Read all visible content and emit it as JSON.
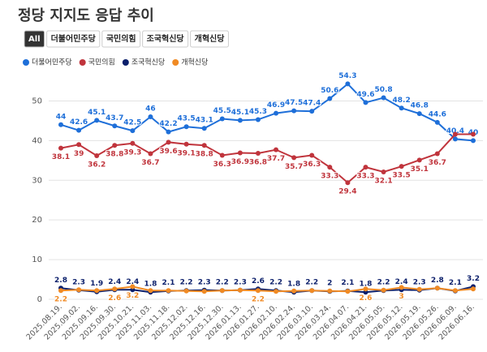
{
  "chart_data": {
    "type": "line",
    "title": "정당 지지도 응답 추이",
    "filters": [
      "All",
      "더불어민주당",
      "국민의힘",
      "조국혁신당",
      "개혁신당"
    ],
    "categories": [
      "2025.08.19.",
      "2025.09.02.",
      "2025.09.16.",
      "2025.09.30.",
      "2025.10.21.",
      "2025.11.03.",
      "2025.11.18.",
      "2025.12.02.",
      "2025.12.16.",
      "2025.12.30.",
      "2026.01.13.",
      "2026.01.27.",
      "2026.02.10.",
      "2026.02.24.",
      "2026.03.10.",
      "2026.03.24.",
      "2026.04.07.",
      "2026.04.21.",
      "2026.05.05.",
      "2026.05.12.",
      "2026.05.19.",
      "2026.05.26.",
      "2026.06.09.",
      "2026.06.16."
    ],
    "series": [
      {
        "name": "더불어민주당",
        "color": "#1e6fd9",
        "values": [
          44,
          42.6,
          45.1,
          43.7,
          42.5,
          46,
          42.2,
          43.5,
          43.1,
          45.5,
          45.1,
          45.3,
          46.9,
          47.5,
          47.4,
          50.6,
          54.3,
          49.6,
          50.8,
          48.2,
          46.8,
          44.6,
          40.4,
          40
        ]
      },
      {
        "name": "국민의힘",
        "color": "#c0343c",
        "values": [
          38.1,
          39,
          36.2,
          38.8,
          39.3,
          36.7,
          39.6,
          39.1,
          38.8,
          36.3,
          36.9,
          36.8,
          37.7,
          35.7,
          36.3,
          33.3,
          29.4,
          33.3,
          32.1,
          33.5,
          35.1,
          36.7,
          41.6,
          41.6
        ],
        "value_labels": [
          "38.1",
          "39",
          "36.2",
          "38.8",
          "39.3",
          "36.7",
          "39.6",
          "39.1",
          "38.8",
          "36.3",
          "36.9",
          "36.8",
          "37.7",
          "35.7",
          "36.3",
          "33.3",
          "29.4",
          "33.3",
          "32.1",
          "33.5",
          "35.1",
          "36.7",
          null,
          null
        ]
      },
      {
        "name": "조국혁신당",
        "color": "#0b1f6b",
        "values": [
          2.8,
          2.3,
          1.9,
          2.4,
          2.4,
          1.8,
          2.1,
          2.2,
          2.3,
          2.2,
          2.3,
          2.6,
          2.2,
          1.8,
          2.2,
          2,
          2.1,
          1.8,
          2.2,
          2.4,
          2.3,
          2.8,
          2.1,
          3.2
        ]
      },
      {
        "name": "개혁신당",
        "color": "#f08a24",
        "values": [
          2.2,
          2.4,
          2.2,
          2.6,
          3.2,
          2.2,
          2.2,
          2.1,
          2,
          2.2,
          2.3,
          2.2,
          2,
          2.1,
          2.2,
          2.1,
          2,
          2.6,
          2.3,
          3,
          2.5,
          2.8,
          2.2,
          2.6
        ],
        "value_labels": [
          "2.2",
          null,
          null,
          "2.6",
          "3.2",
          null,
          null,
          null,
          null,
          null,
          null,
          "2.2",
          null,
          null,
          null,
          null,
          null,
          "2.6",
          null,
          "3",
          null,
          null,
          null,
          null
        ]
      }
    ],
    "ylim": [
      0,
      55
    ],
    "yticks": [
      0,
      10,
      20,
      30,
      40,
      50
    ],
    "grid": true
  }
}
